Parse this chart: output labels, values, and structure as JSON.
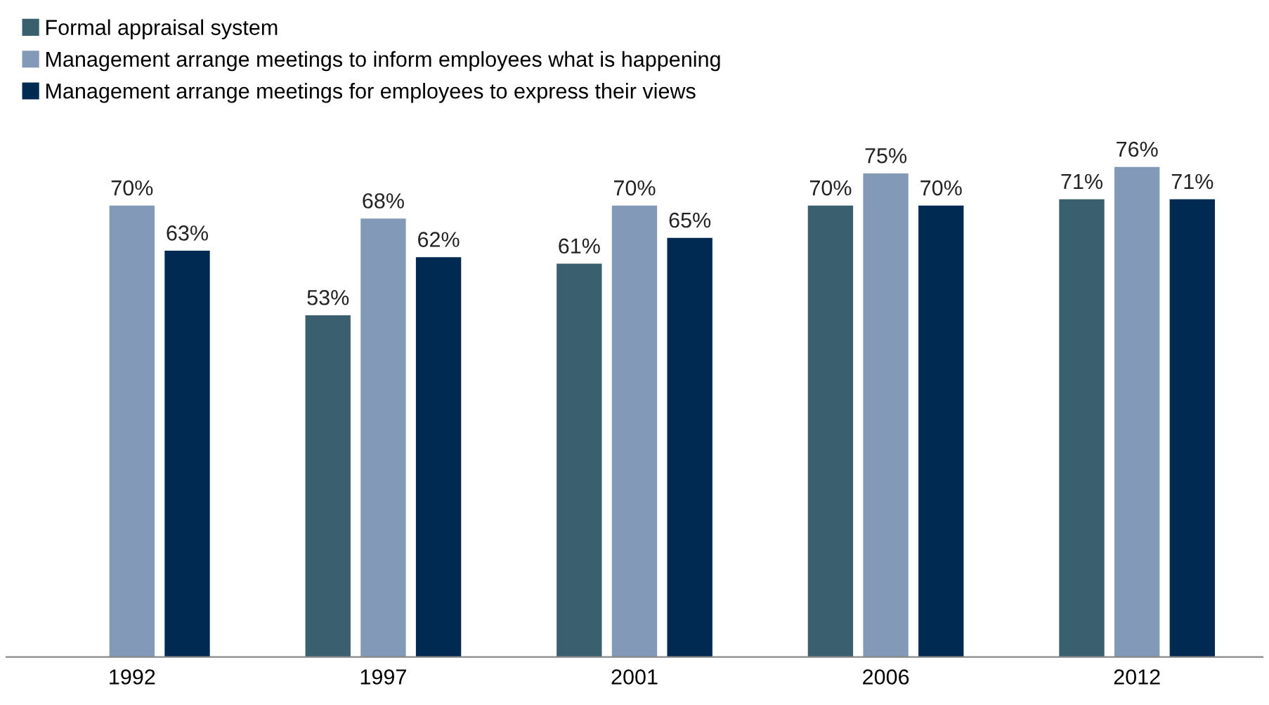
{
  "chart_data": {
    "type": "bar",
    "categories": [
      "1992",
      "1997",
      "2001",
      "2006",
      "2012"
    ],
    "series": [
      {
        "name": "Formal appraisal system",
        "color": "#3a5f6e",
        "values": [
          null,
          53,
          61,
          70,
          71
        ],
        "value_labels": [
          null,
          "53%",
          "61%",
          "70%",
          "71%"
        ]
      },
      {
        "name": "Management arrange meetings to inform employees what is happening",
        "color": "#8299b8",
        "values": [
          70,
          68,
          70,
          75,
          76
        ],
        "value_labels": [
          "70%",
          "68%",
          "70%",
          "75%",
          "76%"
        ]
      },
      {
        "name": "Management arrange meetings for employees to express their views",
        "color": "#002a52",
        "values": [
          63,
          62,
          65,
          70,
          71
        ],
        "value_labels": [
          "63%",
          "62%",
          "65%",
          "70%",
          "71%"
        ]
      }
    ],
    "legend": "top left"
  }
}
